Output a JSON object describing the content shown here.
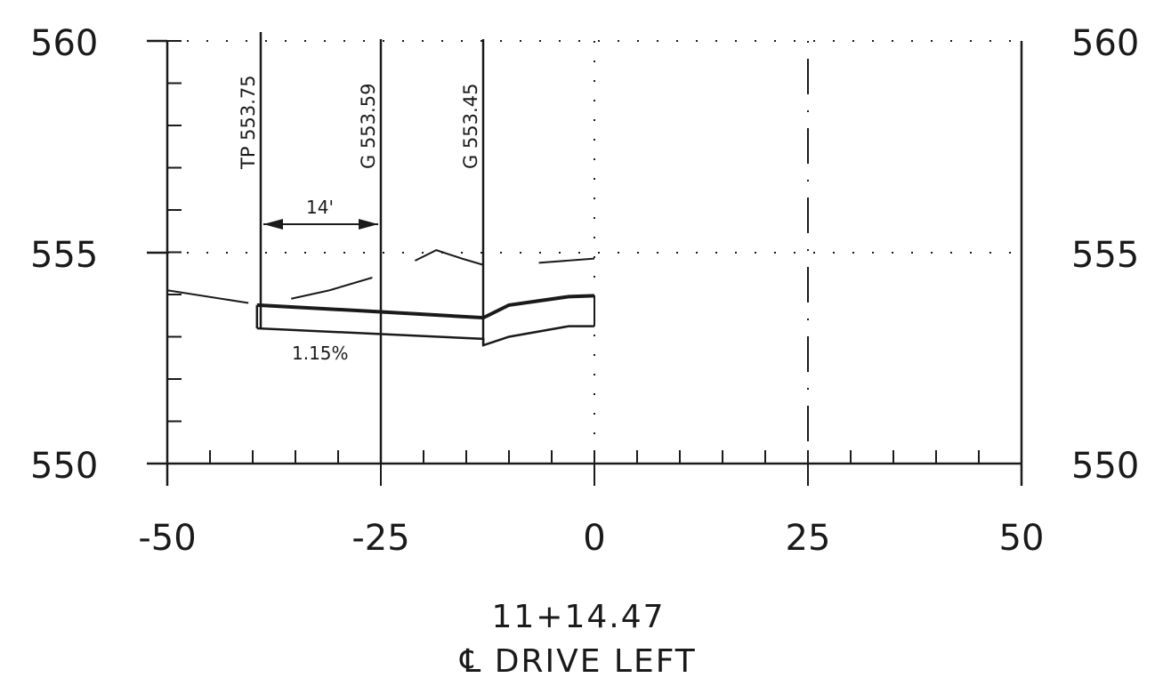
{
  "left_axis_labels": [
    "560",
    "555",
    "550"
  ],
  "right_axis_labels": [
    "560",
    "555",
    "550"
  ],
  "x_tick_labels": [
    "-50",
    "-25",
    "0",
    "25",
    "50"
  ],
  "callouts": [
    {
      "label": "TP 553.75",
      "offset": -39.5
    },
    {
      "label": "G 553.59",
      "offset": -25
    },
    {
      "label": "G 553.45",
      "offset": -13
    }
  ],
  "dimension_label": "14'",
  "slope_label": "1.15%",
  "station": "11+14.47",
  "alignment": "℄ DRIVE LEFT",
  "profiles": {
    "existing_ground": [
      [
        -50,
        554.1
      ],
      [
        -40.5,
        553.8
      ]
    ],
    "existing_right_segments": [
      [
        [
          -35.5,
          553.9
        ],
        [
          -31,
          554.1
        ],
        [
          -26,
          554.4
        ]
      ],
      [
        [
          -21,
          554.8
        ],
        [
          -18.5,
          555.05
        ],
        [
          -15.5,
          554.85
        ],
        [
          -13,
          554.7
        ]
      ],
      [
        [
          -6.5,
          554.75
        ],
        [
          0,
          554.85
        ]
      ]
    ],
    "proposed_top": [
      [
        -39.5,
        553.75
      ],
      [
        -25,
        553.59
      ],
      [
        -13,
        553.45
      ],
      [
        -10,
        553.75
      ],
      [
        -3,
        553.95
      ],
      [
        0,
        553.97
      ]
    ],
    "proposed_bottom": [
      [
        -39.5,
        553.2
      ],
      [
        -13,
        552.95
      ],
      [
        -13,
        552.8
      ],
      [
        -10,
        553.0
      ],
      [
        -3,
        553.25
      ],
      [
        0,
        553.25
      ]
    ]
  },
  "colors": {
    "ink": "#1a1a1a",
    "paper": "#ffffff"
  }
}
